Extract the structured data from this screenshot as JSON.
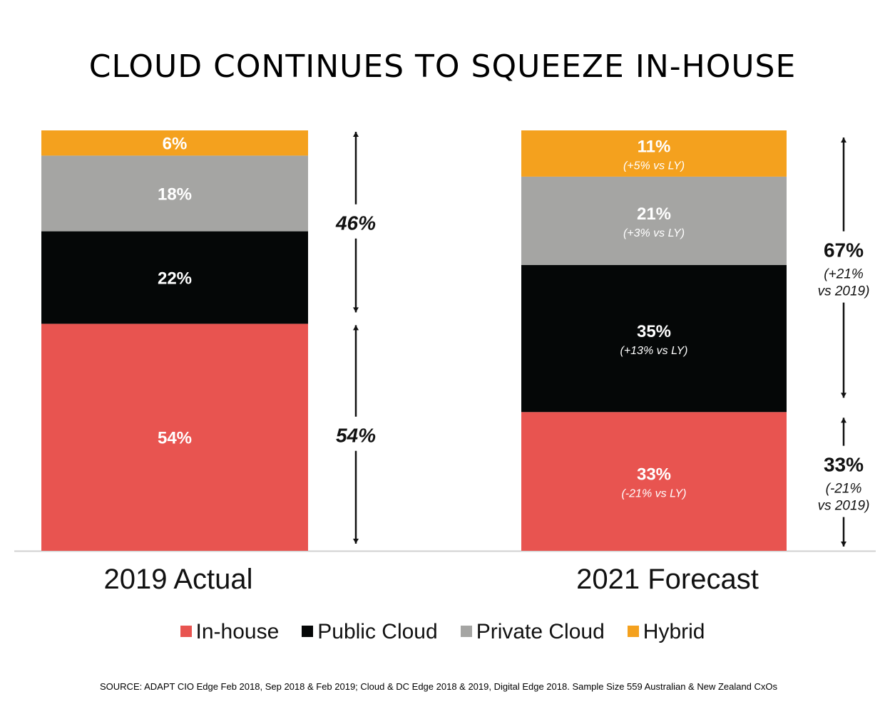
{
  "title": "CLOUD CONTINUES TO SQUEEZE IN-HOUSE",
  "source": "SOURCE: ADAPT CIO Edge Feb 2018, Sep 2018 & Feb 2019; Cloud & DC  Edge 2018 & 2019, Digital Edge 2018. Sample Size 559 Australian & New Zealand CxOs",
  "colors": {
    "In-house": "#e85450",
    "Public Cloud": "#050707",
    "Private Cloud": "#a5a5a3",
    "Hybrid": "#f4a11e"
  },
  "chart_data": {
    "type": "bar",
    "stacked": true,
    "ylim": [
      0,
      100
    ],
    "grid": false,
    "legend_position": "bottom",
    "categories": [
      "2019 Actual",
      "2021 Forecast"
    ],
    "series": [
      {
        "name": "In-house",
        "values": [
          54,
          33
        ],
        "labels": [
          "54%",
          "33%"
        ],
        "sublabels": [
          "",
          "(-21% vs LY)"
        ]
      },
      {
        "name": "Public Cloud",
        "values": [
          22,
          35
        ],
        "labels": [
          "22%",
          "35%"
        ],
        "sublabels": [
          "",
          "(+13% vs LY)"
        ]
      },
      {
        "name": "Private Cloud",
        "values": [
          18,
          21
        ],
        "labels": [
          "18%",
          "21%"
        ],
        "sublabels": [
          "",
          "(+3% vs LY)"
        ]
      },
      {
        "name": "Hybrid",
        "values": [
          6,
          11
        ],
        "labels": [
          "6%",
          "11%"
        ],
        "sublabels": [
          "",
          "(+5% vs LY)"
        ]
      }
    ],
    "brackets": [
      {
        "bar": 0,
        "span": "cloud",
        "label": "46%",
        "sublabel": []
      },
      {
        "bar": 0,
        "span": "in-house",
        "label": "54%",
        "sublabel": []
      },
      {
        "bar": 1,
        "span": "cloud",
        "label": "67%",
        "sublabel": [
          "(+21%",
          "vs 2019)"
        ]
      },
      {
        "bar": 1,
        "span": "in-house",
        "label": "33%",
        "sublabel": [
          "(-21%",
          "vs 2019)"
        ]
      }
    ]
  }
}
